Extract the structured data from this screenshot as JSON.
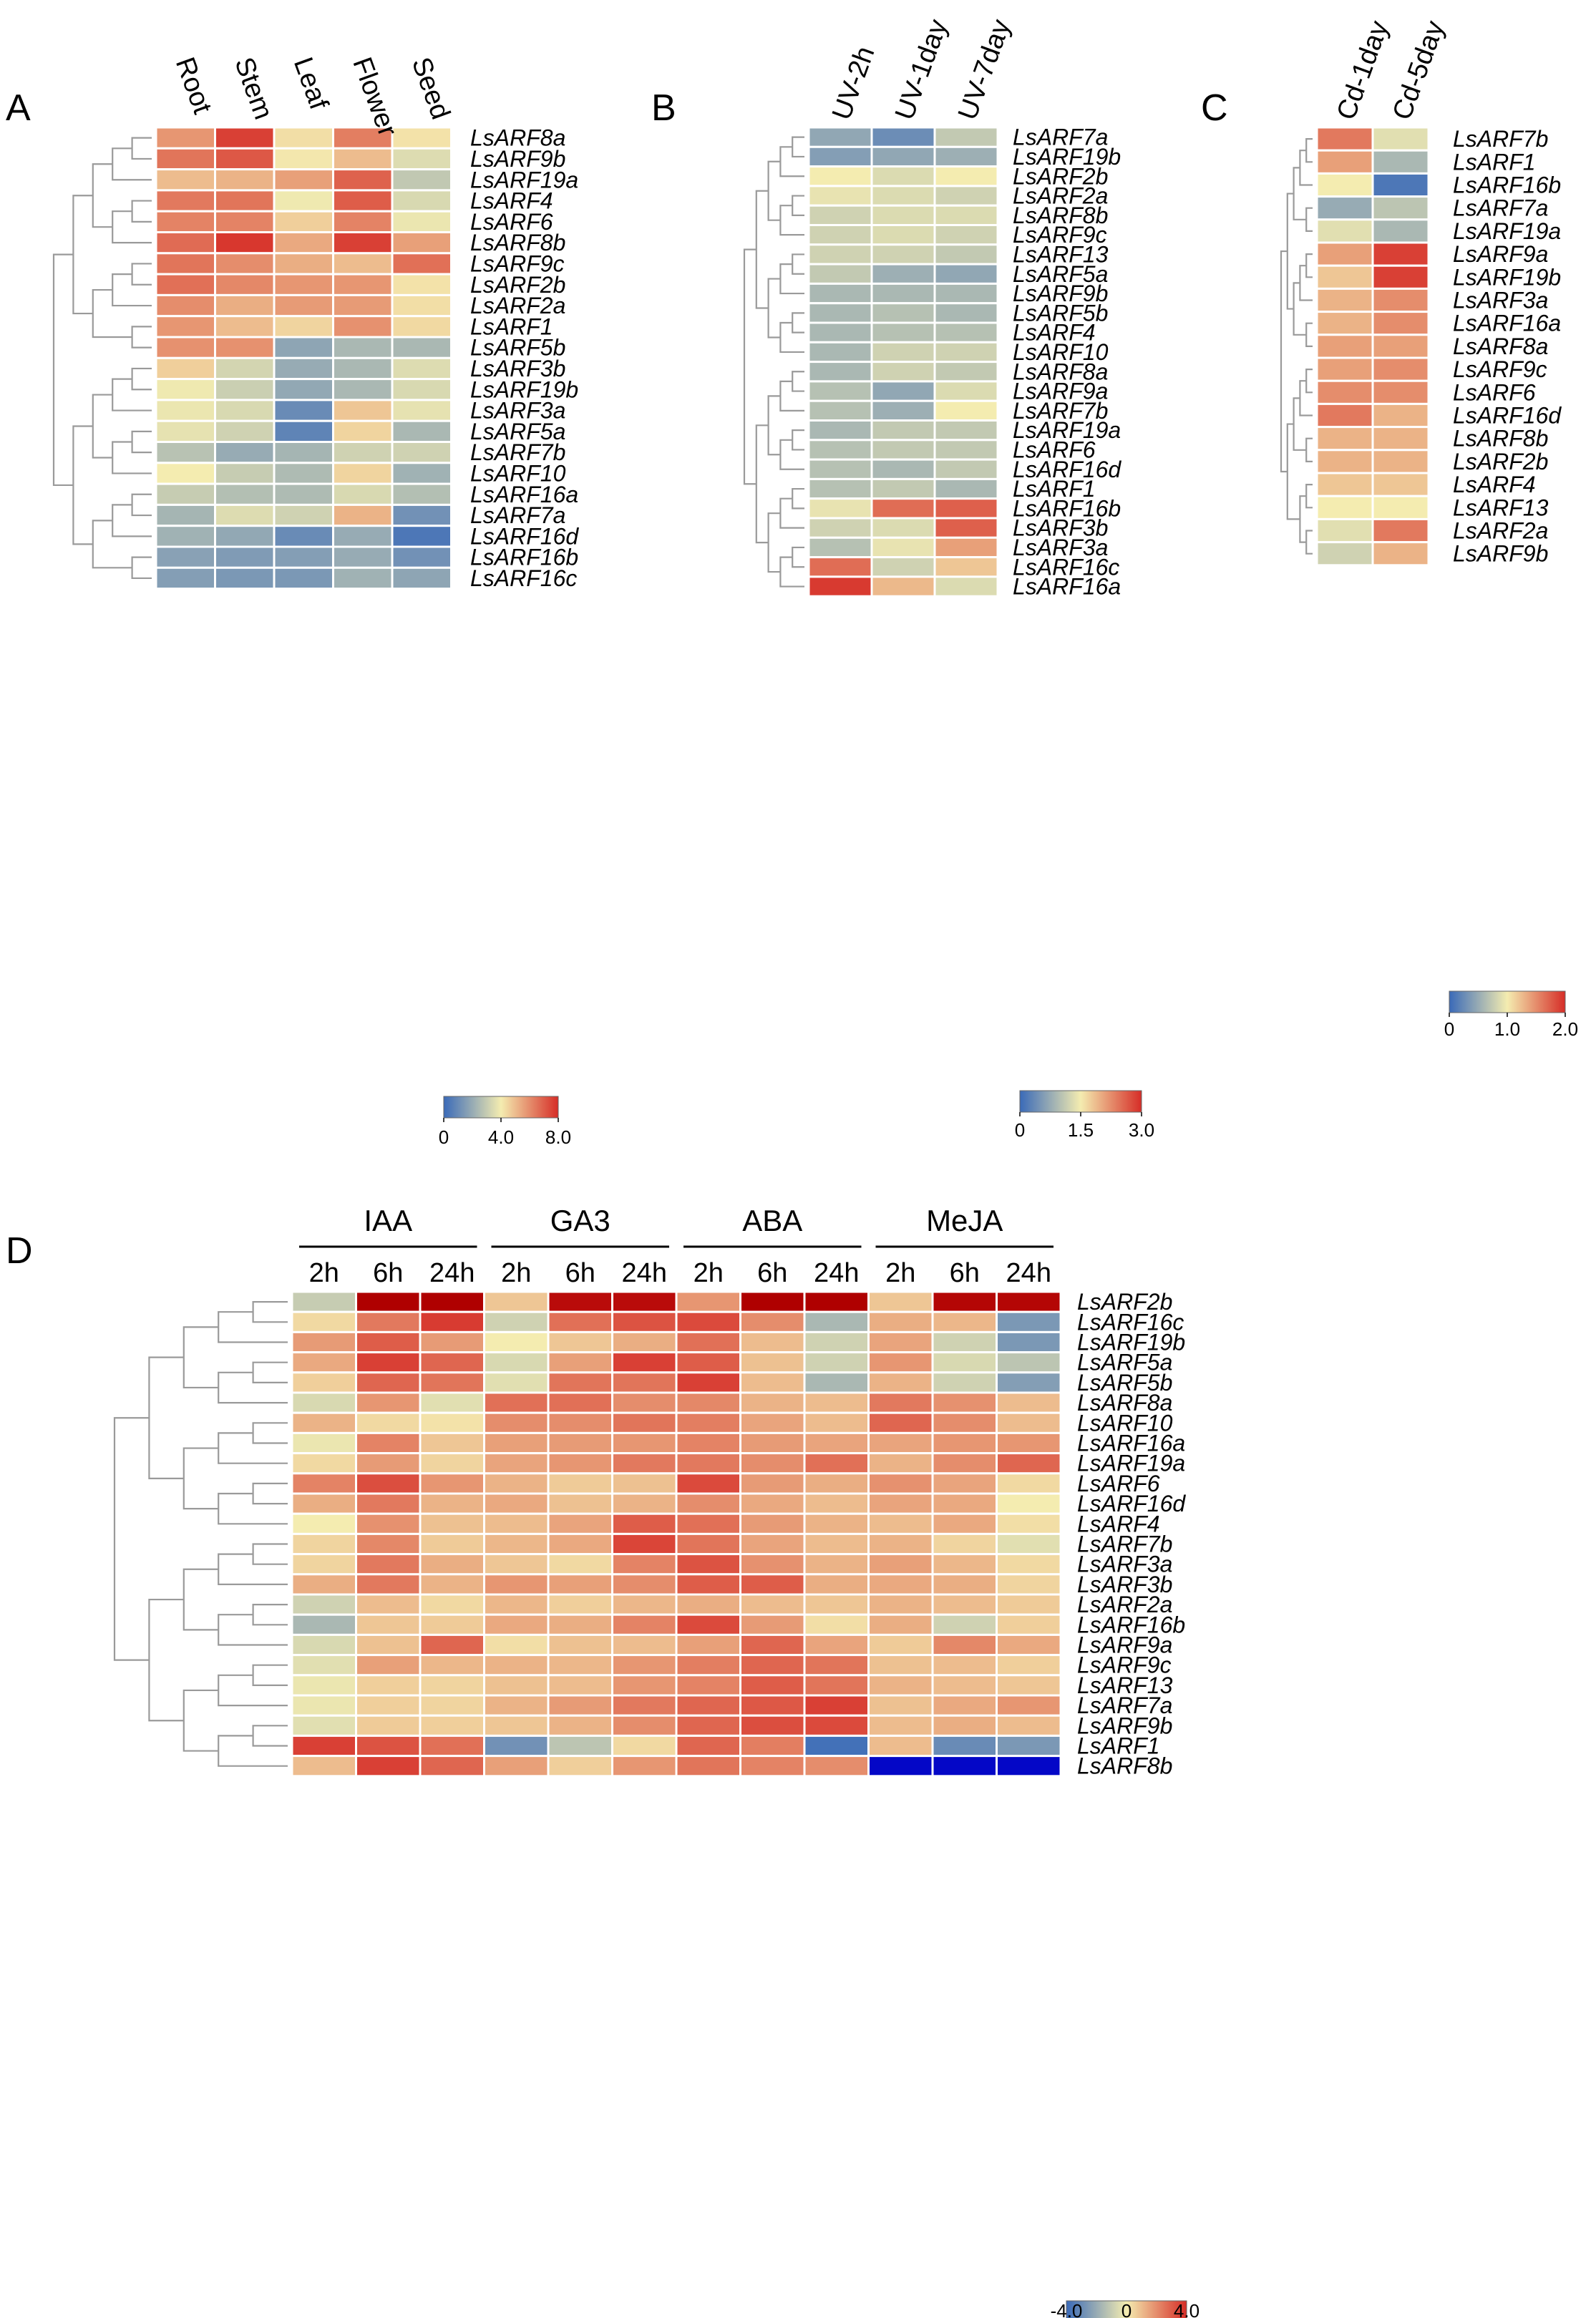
{
  "chart_data": [
    {
      "panel": "A",
      "type": "heatmap",
      "columns": [
        "Root",
        "Stem",
        "Leaf",
        "Flower",
        "Seed"
      ],
      "rows": [
        "LsARF8a",
        "LsARF9b",
        "LsARF19a",
        "LsARF4",
        "LsARF6",
        "LsARF8b",
        "LsARF9c",
        "LsARF2b",
        "LsARF2a",
        "LsARF1",
        "LsARF5b",
        "LsARF3b",
        "LsARF19b",
        "LsARF3a",
        "LsARF5a",
        "LsARF7b",
        "LsARF10",
        "LsARF16a",
        "LsARF7a",
        "LsARF16d",
        "LsARF16b",
        "LsARF16c"
      ],
      "values": [
        [
          5.8,
          7.6,
          4.3,
          6.3,
          4.2
        ],
        [
          6.5,
          7.1,
          4.1,
          5.0,
          3.5
        ],
        [
          5.0,
          5.2,
          5.6,
          6.9,
          2.9
        ],
        [
          6.4,
          6.5,
          3.9,
          7.0,
          3.4
        ],
        [
          6.2,
          6.2,
          4.6,
          6.2,
          3.8
        ],
        [
          6.7,
          7.8,
          5.4,
          7.6,
          5.6
        ],
        [
          6.5,
          6.0,
          5.3,
          5.0,
          6.6
        ],
        [
          6.6,
          6.1,
          5.8,
          5.8,
          4.2
        ],
        [
          6.0,
          5.3,
          5.7,
          5.7,
          4.3
        ],
        [
          5.8,
          5.0,
          4.5,
          5.9,
          4.4
        ],
        [
          5.9,
          5.9,
          1.8,
          2.4,
          2.4
        ],
        [
          4.6,
          3.3,
          2.0,
          2.4,
          3.5
        ],
        [
          3.9,
          3.1,
          1.9,
          2.4,
          3.4
        ],
        [
          3.8,
          3.4,
          1.0,
          4.8,
          3.7
        ],
        [
          3.7,
          3.2,
          0.8,
          4.5,
          2.4
        ],
        [
          2.7,
          2.0,
          2.3,
          3.2,
          3.2
        ],
        [
          4.0,
          3.0,
          2.5,
          4.5,
          2.2
        ],
        [
          3.0,
          2.6,
          2.5,
          3.4,
          2.6
        ],
        [
          2.3,
          3.5,
          3.2,
          5.2,
          1.2
        ],
        [
          2.2,
          1.9,
          1.0,
          2.0,
          0.4
        ],
        [
          1.7,
          1.5,
          1.6,
          2.0,
          1.2
        ],
        [
          1.6,
          1.4,
          1.4,
          2.2,
          1.8
        ]
      ],
      "colorbar": {
        "min": 0,
        "mid": 4.0,
        "max": 8.0,
        "labels": [
          "0",
          "4.0",
          "8.0"
        ]
      }
    },
    {
      "panel": "B",
      "type": "heatmap",
      "columns": [
        "UV-2h",
        "UV-1day",
        "UV-7day"
      ],
      "rows": [
        "LsARF7a",
        "LsARF19b",
        "LsARF2b",
        "LsARF2a",
        "LsARF8b",
        "LsARF9c",
        "LsARF13",
        "LsARF5a",
        "LsARF9b",
        "LsARF5b",
        "LsARF4",
        "LsARF10",
        "LsARF8a",
        "LsARF9a",
        "LsARF7b",
        "LsARF19a",
        "LsARF6",
        "LsARF16d",
        "LsARF1",
        "LsARF16b",
        "LsARF3b",
        "LsARF3a",
        "LsARF16c",
        "LsARF16a"
      ],
      "values": [
        [
          0.7,
          0.4,
          1.1
        ],
        [
          0.6,
          0.7,
          0.8
        ],
        [
          1.5,
          1.3,
          1.5
        ],
        [
          1.4,
          1.3,
          1.2
        ],
        [
          1.2,
          1.3,
          1.3
        ],
        [
          1.2,
          1.3,
          1.2
        ],
        [
          1.2,
          1.2,
          1.1
        ],
        [
          1.1,
          0.8,
          0.7
        ],
        [
          0.9,
          0.9,
          0.9
        ],
        [
          0.9,
          1.0,
          0.9
        ],
        [
          0.9,
          1.0,
          1.0
        ],
        [
          0.9,
          1.2,
          1.2
        ],
        [
          0.9,
          1.2,
          1.1
        ],
        [
          1.0,
          0.7,
          1.3
        ],
        [
          1.0,
          0.8,
          1.5
        ],
        [
          0.9,
          1.1,
          1.1
        ],
        [
          1.0,
          1.1,
          1.1
        ],
        [
          1.0,
          0.9,
          1.1
        ],
        [
          1.0,
          1.1,
          0.9
        ],
        [
          1.4,
          2.5,
          2.6
        ],
        [
          1.2,
          1.3,
          2.6
        ],
        [
          1.0,
          1.4,
          2.1
        ],
        [
          2.5,
          1.2,
          1.8
        ],
        [
          2.9,
          1.9,
          1.3
        ]
      ],
      "colorbar": {
        "min": 0,
        "mid": 1.5,
        "max": 3.0,
        "labels": [
          "0",
          "1.5",
          "3.0"
        ]
      }
    },
    {
      "panel": "C",
      "type": "heatmap",
      "columns": [
        "Cd-1day",
        "Cd-5day"
      ],
      "rows": [
        "LsARF7b",
        "LsARF1",
        "LsARF16b",
        "LsARF7a",
        "LsARF19a",
        "LsARF9a",
        "LsARF19b",
        "LsARF3a",
        "LsARF16a",
        "LsARF8a",
        "LsARF9c",
        "LsARF6",
        "LsARF16d",
        "LsARF8b",
        "LsARF2b",
        "LsARF4",
        "LsARF13",
        "LsARF2a",
        "LsARF9b"
      ],
      "values": [
        [
          1.6,
          0.9
        ],
        [
          1.4,
          0.6
        ],
        [
          1.0,
          0.1
        ],
        [
          0.5,
          0.7
        ],
        [
          0.9,
          0.6
        ],
        [
          1.4,
          1.9
        ],
        [
          1.2,
          1.9
        ],
        [
          1.3,
          1.5
        ],
        [
          1.3,
          1.5
        ],
        [
          1.4,
          1.4
        ],
        [
          1.4,
          1.5
        ],
        [
          1.5,
          1.5
        ],
        [
          1.6,
          1.3
        ],
        [
          1.3,
          1.3
        ],
        [
          1.3,
          1.3
        ],
        [
          1.2,
          1.2
        ],
        [
          1.0,
          1.0
        ],
        [
          0.9,
          1.6
        ],
        [
          0.8,
          1.3
        ]
      ],
      "colorbar": {
        "min": 0,
        "mid": 1.0,
        "max": 2.0,
        "labels": [
          "0",
          "1.0",
          "2.0"
        ]
      }
    },
    {
      "panel": "D",
      "type": "heatmap",
      "groups": [
        "IAA",
        "GA3",
        "ABA",
        "MeJA"
      ],
      "columns": [
        "2h",
        "6h",
        "24h",
        "2h",
        "6h",
        "24h",
        "2h",
        "6h",
        "24h",
        "2h",
        "6h",
        "24h"
      ],
      "rows": [
        "LsARF2b",
        "LsARF16c",
        "LsARF19b",
        "LsARF5a",
        "LsARF5b",
        "LsARF8a",
        "LsARF10",
        "LsARF16a",
        "LsARF19a",
        "LsARF6",
        "LsARF16d",
        "LsARF4",
        "LsARF7b",
        "LsARF3a",
        "LsARF3b",
        "LsARF2a",
        "LsARF16b",
        "LsARF9a",
        "LsARF9c",
        "LsARF13",
        "LsARF7a",
        "LsARF9b",
        "LsARF1",
        "LsARF8b"
      ],
      "values": [
        [
          -1.0,
          4.8,
          4.8,
          0.8,
          4.6,
          4.6,
          1.8,
          4.8,
          4.8,
          0.8,
          4.7,
          4.7
        ],
        [
          0.4,
          2.4,
          3.7,
          -0.8,
          2.6,
          3.2,
          3.4,
          2.0,
          -1.6,
          1.3,
          1.1,
          -2.6
        ],
        [
          1.7,
          3.0,
          1.7,
          0.0,
          0.8,
          1.3,
          2.6,
          1.0,
          -0.8,
          1.5,
          -0.8,
          -2.6
        ],
        [
          1.4,
          3.6,
          2.8,
          -0.6,
          1.6,
          3.6,
          3.0,
          0.9,
          -0.8,
          1.8,
          -0.6,
          -1.2
        ],
        [
          0.6,
          2.8,
          2.5,
          -0.4,
          2.5,
          2.5,
          3.6,
          1.0,
          -1.6,
          1.2,
          -0.8,
          -2.4
        ],
        [
          -0.6,
          1.8,
          -0.4,
          2.6,
          2.6,
          2.0,
          2.1,
          1.2,
          1.0,
          2.4,
          1.9,
          1.0
        ],
        [
          1.2,
          0.4,
          0.2,
          2.0,
          2.0,
          2.5,
          2.3,
          1.5,
          1.0,
          2.8,
          2.0,
          1.0
        ],
        [
          -0.2,
          2.2,
          0.8,
          1.6,
          1.7,
          1.8,
          2.2,
          1.7,
          1.5,
          1.5,
          1.8,
          1.8
        ],
        [
          0.4,
          1.7,
          0.5,
          1.5,
          1.8,
          2.4,
          2.4,
          2.0,
          2.6,
          1.2,
          2.0,
          2.8
        ],
        [
          2.2,
          3.3,
          1.8,
          1.2,
          0.7,
          0.9,
          3.4,
          1.7,
          1.3,
          1.9,
          1.5,
          0.4
        ],
        [
          1.3,
          2.4,
          1.2,
          1.4,
          0.9,
          1.2,
          2.0,
          1.4,
          1.0,
          1.5,
          1.4,
          0.0
        ],
        [
          0.0,
          1.9,
          0.9,
          1.0,
          1.5,
          3.0,
          2.6,
          1.7,
          1.2,
          1.0,
          1.4,
          0.3
        ],
        [
          0.5,
          2.1,
          0.7,
          1.1,
          1.4,
          3.5,
          2.5,
          1.5,
          1.0,
          1.2,
          0.5,
          -0.4
        ],
        [
          0.5,
          2.4,
          1.3,
          0.8,
          0.4,
          2.2,
          3.2,
          1.9,
          1.2,
          1.6,
          1.1,
          0.4
        ],
        [
          1.3,
          2.4,
          1.2,
          1.8,
          1.6,
          2.0,
          3.0,
          3.0,
          1.3,
          1.4,
          1.3,
          0.5
        ],
        [
          -0.8,
          1.0,
          0.4,
          1.1,
          0.6,
          1.1,
          1.3,
          1.0,
          0.8,
          1.2,
          1.0,
          0.7
        ],
        [
          -1.6,
          0.8,
          0.7,
          1.4,
          1.3,
          2.2,
          3.4,
          1.7,
          0.3,
          1.3,
          -0.8,
          0.6
        ],
        [
          -0.6,
          0.9,
          2.8,
          0.3,
          0.9,
          1.0,
          1.6,
          2.8,
          1.5,
          0.7,
          2.1,
          1.4
        ],
        [
          -0.4,
          1.6,
          1.1,
          1.2,
          1.1,
          1.8,
          2.3,
          2.8,
          2.5,
          0.9,
          1.0,
          0.6
        ],
        [
          -0.2,
          0.6,
          0.5,
          0.9,
          1.0,
          1.8,
          2.2,
          3.0,
          2.5,
          1.2,
          1.0,
          0.8
        ],
        [
          -0.2,
          0.6,
          0.5,
          1.2,
          1.7,
          2.4,
          2.8,
          3.1,
          3.6,
          0.9,
          1.4,
          1.8
        ],
        [
          -0.4,
          0.7,
          0.6,
          0.8,
          1.2,
          2.0,
          2.8,
          3.3,
          3.4,
          1.0,
          1.3,
          1.0
        ],
        [
          3.6,
          3.2,
          2.6,
          -2.8,
          -1.2,
          0.4,
          2.8,
          2.3,
          -3.8,
          1.0,
          -3.0,
          -2.6
        ],
        [
          1.0,
          3.6,
          2.8,
          1.6,
          0.6,
          1.8,
          2.5,
          2.2,
          2.0,
          -5.5,
          -5.5,
          -5.5
        ]
      ],
      "colorbar": {
        "min": -4.0,
        "mid": 0,
        "max": 4.0,
        "labels": [
          "-4.0",
          "0",
          "4.0"
        ]
      }
    }
  ]
}
